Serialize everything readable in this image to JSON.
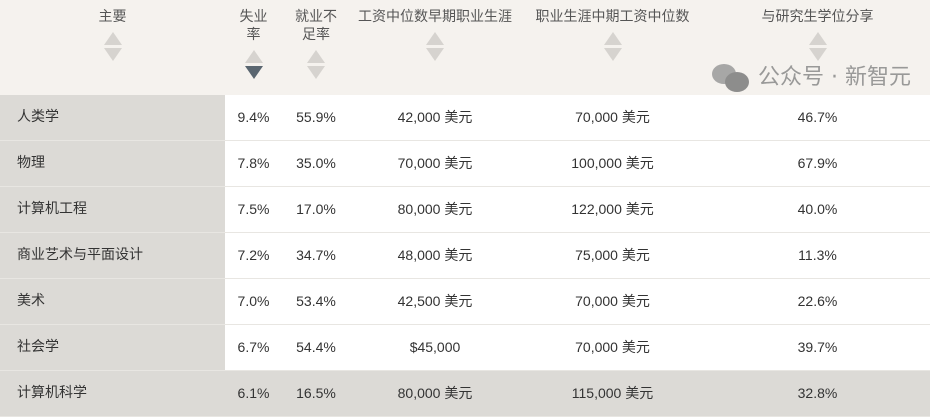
{
  "headers": [
    "主要",
    "失业率",
    "就业不足率",
    "工资中位数早期职业生涯",
    "职业生涯中期工资中位数",
    "与研究生学位分享"
  ],
  "sort": {
    "column": "失业率",
    "direction": "descending"
  },
  "rows": [
    [
      "人类学",
      "9.4%",
      "55.9%",
      "42,000 美元",
      "70,000 美元",
      "46.7%"
    ],
    [
      "物理",
      "7.8%",
      "35.0%",
      "70,000 美元",
      "100,000 美元",
      "67.9%"
    ],
    [
      "计算机工程",
      "7.5%",
      "17.0%",
      "80,000 美元",
      "122,000 美元",
      "40.0%"
    ],
    [
      "商业艺术与平面设计",
      "7.2%",
      "34.7%",
      "48,000 美元",
      "75,000 美元",
      "11.3%"
    ],
    [
      "美术",
      "7.0%",
      "53.4%",
      "42,500 美元",
      "70,000 美元",
      "22.6%"
    ],
    [
      "社会学",
      "6.7%",
      "54.4%",
      "$45,000",
      "70,000 美元",
      "39.7%"
    ],
    [
      "计算机科学",
      "6.1%",
      "16.5%",
      "80,000 美元",
      "115,000 美元",
      "32.8%"
    ]
  ],
  "watermark": {
    "text": "公众号 · 新智元",
    "icon": "wechat-icon"
  }
}
